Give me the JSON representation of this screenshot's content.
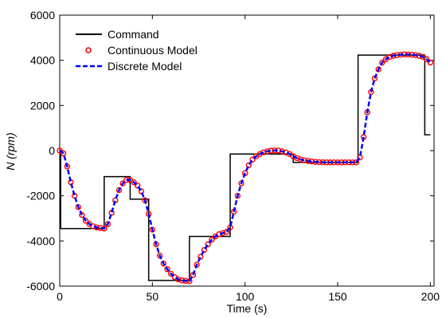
{
  "chart_data": {
    "type": "line",
    "xlabel": "Time (s)",
    "ylabel": "N (rpm)",
    "xlim": [
      0,
      202
    ],
    "ylim": [
      -6000,
      6000
    ],
    "xticks": [
      0,
      50,
      100,
      150,
      200
    ],
    "yticks": [
      6000,
      4000,
      2000,
      0,
      -2000,
      -4000,
      -6000
    ],
    "x_tick_labels": [
      "0",
      "50",
      "100",
      "150",
      "200"
    ],
    "y_tick_labels": [
      "6000",
      "4000",
      "2000",
      "0",
      "-2000",
      "-4000",
      "-6000"
    ],
    "legend_position": "top-left",
    "series": [
      {
        "name": "Command",
        "style": "solid",
        "color": "#000000",
        "x": [
          0,
          0.5,
          0.5,
          24,
          24,
          38,
          38,
          48,
          48,
          70,
          70,
          92,
          92,
          126,
          126,
          161,
          161,
          197,
          197,
          200
        ],
        "y": [
          0,
          0,
          -3450,
          -3450,
          -1150,
          -1150,
          -2150,
          -2150,
          -5750,
          -5750,
          -3800,
          -3800,
          -150,
          -150,
          -520,
          -520,
          4230,
          4230,
          700,
          700
        ]
      },
      {
        "name": "Continuous Model",
        "style": "circle-markers",
        "color": "#ff0000",
        "x": [
          0,
          2,
          4,
          6,
          8,
          10,
          12,
          14,
          16,
          18,
          20,
          22,
          24,
          26,
          28,
          30,
          32,
          34,
          36,
          38,
          40,
          42,
          44,
          46,
          48,
          50,
          52,
          54,
          56,
          58,
          60,
          62,
          64,
          66,
          68,
          70,
          72,
          74,
          76,
          78,
          80,
          82,
          84,
          86,
          88,
          90,
          92,
          94,
          96,
          98,
          100,
          102,
          104,
          106,
          108,
          110,
          112,
          114,
          116,
          118,
          120,
          122,
          124,
          126,
          128,
          130,
          132,
          134,
          136,
          138,
          140,
          142,
          144,
          146,
          148,
          150,
          152,
          154,
          156,
          158,
          160,
          162,
          164,
          166,
          168,
          170,
          172,
          174,
          176,
          178,
          180,
          182,
          184,
          186,
          188,
          190,
          192,
          194,
          196,
          198,
          200
        ],
        "y": [
          0,
          -120,
          -700,
          -1400,
          -2000,
          -2500,
          -2850,
          -3100,
          -3250,
          -3350,
          -3400,
          -3430,
          -3450,
          -3250,
          -2750,
          -2200,
          -1750,
          -1450,
          -1300,
          -1300,
          -1400,
          -1550,
          -1800,
          -2200,
          -2800,
          -3500,
          -4150,
          -4650,
          -5000,
          -5250,
          -5450,
          -5600,
          -5700,
          -5750,
          -5770,
          -5780,
          -5500,
          -5050,
          -4700,
          -4400,
          -4150,
          -3950,
          -3800,
          -3700,
          -3650,
          -3600,
          -3400,
          -2700,
          -2000,
          -1450,
          -1000,
          -650,
          -400,
          -250,
          -150,
          -80,
          -30,
          0,
          10,
          5,
          -30,
          -80,
          -150,
          -250,
          -330,
          -390,
          -430,
          -460,
          -480,
          -500,
          -510,
          -515,
          -520,
          -520,
          -520,
          -520,
          -520,
          -520,
          -520,
          -520,
          -520,
          -300,
          600,
          1700,
          2600,
          3200,
          3600,
          3900,
          4050,
          4150,
          4200,
          4230,
          4250,
          4260,
          4260,
          4250,
          4230,
          4200,
          4150,
          4050,
          3900
        ]
      },
      {
        "name": "Discrete Model",
        "style": "dashed",
        "color": "#0000ff",
        "x": [
          0,
          2,
          4,
          6,
          8,
          10,
          12,
          14,
          16,
          18,
          20,
          22,
          24,
          26,
          28,
          30,
          32,
          34,
          36,
          38,
          40,
          42,
          44,
          46,
          48,
          50,
          52,
          54,
          56,
          58,
          60,
          62,
          64,
          66,
          68,
          70,
          72,
          74,
          76,
          78,
          80,
          82,
          84,
          86,
          88,
          90,
          92,
          94,
          96,
          98,
          100,
          102,
          104,
          106,
          108,
          110,
          112,
          114,
          116,
          118,
          120,
          122,
          124,
          126,
          128,
          130,
          132,
          134,
          136,
          138,
          140,
          142,
          144,
          146,
          148,
          150,
          152,
          154,
          156,
          158,
          160,
          162,
          164,
          166,
          168,
          170,
          172,
          174,
          176,
          178,
          180,
          182,
          184,
          186,
          188,
          190,
          192,
          194,
          196,
          198,
          200
        ],
        "y": [
          0,
          -120,
          -700,
          -1400,
          -2000,
          -2500,
          -2850,
          -3100,
          -3250,
          -3350,
          -3400,
          -3430,
          -3450,
          -3250,
          -2750,
          -2200,
          -1750,
          -1450,
          -1300,
          -1300,
          -1400,
          -1550,
          -1800,
          -2200,
          -2800,
          -3500,
          -4150,
          -4650,
          -5000,
          -5250,
          -5450,
          -5600,
          -5700,
          -5750,
          -5770,
          -5780,
          -5500,
          -5050,
          -4700,
          -4400,
          -4150,
          -3950,
          -3800,
          -3700,
          -3650,
          -3600,
          -3400,
          -2700,
          -2000,
          -1450,
          -1000,
          -650,
          -400,
          -250,
          -150,
          -80,
          -30,
          0,
          10,
          5,
          -30,
          -80,
          -150,
          -250,
          -330,
          -390,
          -430,
          -460,
          -480,
          -500,
          -510,
          -515,
          -520,
          -520,
          -520,
          -520,
          -520,
          -520,
          -520,
          -520,
          -520,
          -300,
          600,
          1700,
          2600,
          3200,
          3600,
          3900,
          4050,
          4150,
          4200,
          4230,
          4250,
          4260,
          4260,
          4250,
          4230,
          4200,
          4150,
          4050,
          3900
        ]
      }
    ]
  }
}
